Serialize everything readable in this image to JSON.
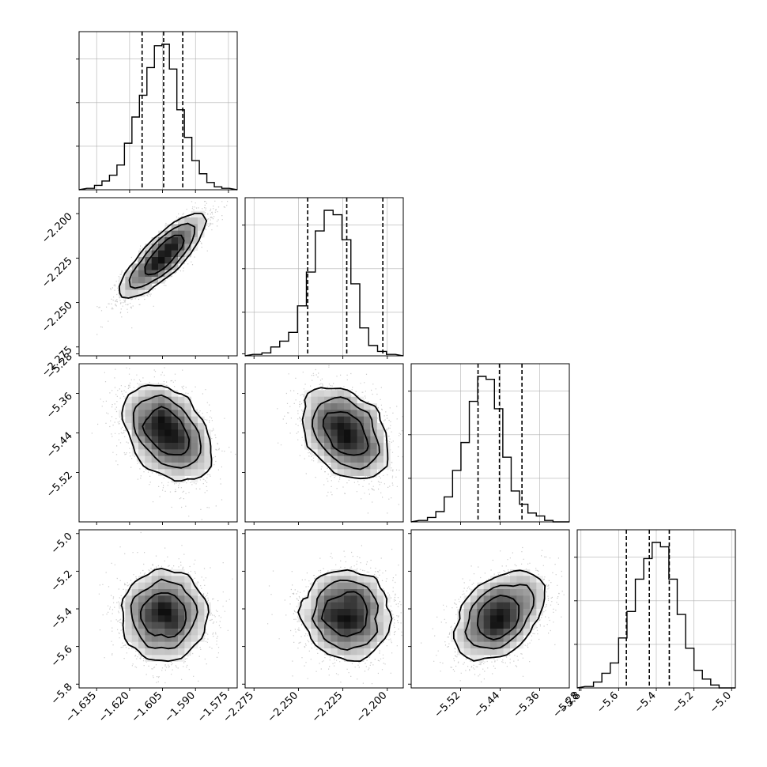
{
  "chart_data": {
    "type": "corner",
    "params": [
      {
        "range": [
          -1.643,
          -1.571
        ],
        "ticks": [
          "−1.635",
          "−1.620",
          "−1.605",
          "−1.590",
          "−1.575"
        ],
        "tick_values": [
          -1.635,
          -1.62,
          -1.605,
          -1.59,
          -1.575
        ],
        "quantiles": [
          -1.6143,
          -1.6045,
          -1.5958
        ],
        "hist": [
          1,
          3,
          6,
          10,
          17,
          32,
          50,
          65,
          84,
          99,
          100,
          83,
          55,
          36,
          20,
          11,
          5,
          2,
          1
        ]
      },
      {
        "range": [
          -2.28,
          -2.191
        ],
        "ticks": [
          "−2.275",
          "−2.250",
          "−2.225",
          "−2.200"
        ],
        "tick_values": [
          -2.275,
          -2.25,
          -2.225,
          -2.2
        ],
        "quantiles": [
          -2.2448,
          -2.2228,
          -2.2025
        ],
        "hist": [
          1,
          2,
          6,
          10,
          16,
          34,
          57,
          85,
          99,
          96,
          79,
          49,
          19,
          7,
          3,
          1
        ]
      },
      {
        "range": [
          -5.62,
          -5.3
        ],
        "ticks": [
          "−5.52",
          "−5.44",
          "−5.36",
          "−5.28"
        ],
        "tick_values": [
          -5.52,
          -5.44,
          -5.36,
          -5.28
        ],
        "quantiles": [
          -5.4847,
          -5.4414,
          -5.3958
        ],
        "hist": [
          1,
          3,
          7,
          17,
          35,
          54,
          82,
          99,
          97,
          77,
          44,
          21,
          12,
          6,
          4,
          1,
          0
        ]
      },
      {
        "range": [
          -5.82,
          -4.98
        ],
        "ticks": [
          "−5.8",
          "−5.6",
          "−5.4",
          "−5.2",
          "−5.0"
        ],
        "tick_values": [
          -5.8,
          -5.6,
          -5.4,
          -5.2,
          -5.0
        ],
        "quantiles": [
          -5.559,
          -5.437,
          -5.331
        ],
        "hist": [
          1,
          4,
          10,
          17,
          34,
          52,
          74,
          88,
          99,
          96,
          74,
          50,
          27,
          12,
          6,
          2,
          0
        ]
      }
    ],
    "pairs": [
      {
        "row": 1,
        "col": 0,
        "mean": [
          -1.6045,
          -2.2235
        ],
        "sd": [
          0.0095,
          0.0115
        ],
        "corr": 0.85
      },
      {
        "row": 2,
        "col": 0,
        "mean": [
          -1.603,
          -5.44
        ],
        "sd": [
          0.0095,
          0.046
        ],
        "corr": -0.38
      },
      {
        "row": 2,
        "col": 1,
        "mean": [
          -2.223,
          -5.441
        ],
        "sd": [
          0.012,
          0.045
        ],
        "corr": -0.33
      },
      {
        "row": 3,
        "col": 0,
        "mean": [
          -1.604,
          -5.435
        ],
        "sd": [
          0.0095,
          0.115
        ],
        "corr": 0.0
      },
      {
        "row": 3,
        "col": 1,
        "mean": [
          -2.223,
          -5.436
        ],
        "sd": [
          0.012,
          0.115
        ],
        "corr": 0.0
      },
      {
        "row": 3,
        "col": 2,
        "mean": [
          -5.441,
          -5.437
        ],
        "sd": [
          0.045,
          0.115
        ],
        "corr": 0.45
      }
    ]
  }
}
